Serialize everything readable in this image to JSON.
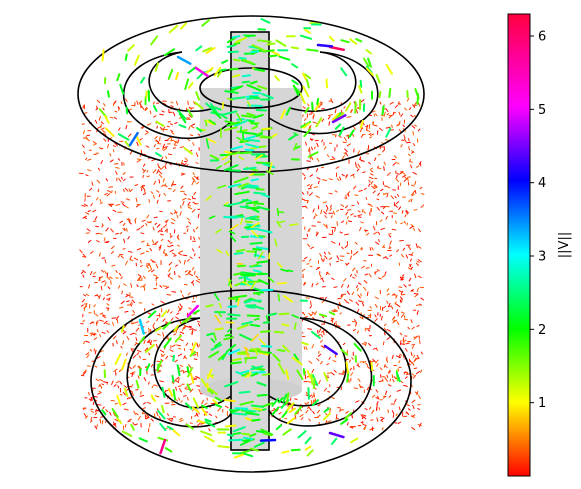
{
  "chart_data": {
    "type": "quiver3d",
    "title": "",
    "colorbar": {
      "label": "||V||",
      "colormap": "gist_rainbow_r",
      "range": [
        0,
        6.3
      ],
      "ticks": [
        1,
        2,
        3,
        4,
        5,
        6
      ],
      "tick_labels": [
        "1",
        "2",
        "3",
        "4",
        "5",
        "6"
      ]
    },
    "grid": false,
    "axes_visible": false,
    "geometry": {
      "outer_cylinder_radius": 1.0,
      "outer_cylinder_height": 1.0,
      "inner_pillar_radius": 0.3,
      "central_plate_halfwidth": 0.055,
      "spiral_channels_per_end": 2
    },
    "vector_field": {
      "background_magnitude_range": [
        0.0,
        0.4
      ],
      "channel_magnitude_range": [
        0.9,
        2.5
      ],
      "jet_magnitude_range": [
        1.5,
        3.0
      ],
      "max_magnitude": 6.2
    }
  }
}
